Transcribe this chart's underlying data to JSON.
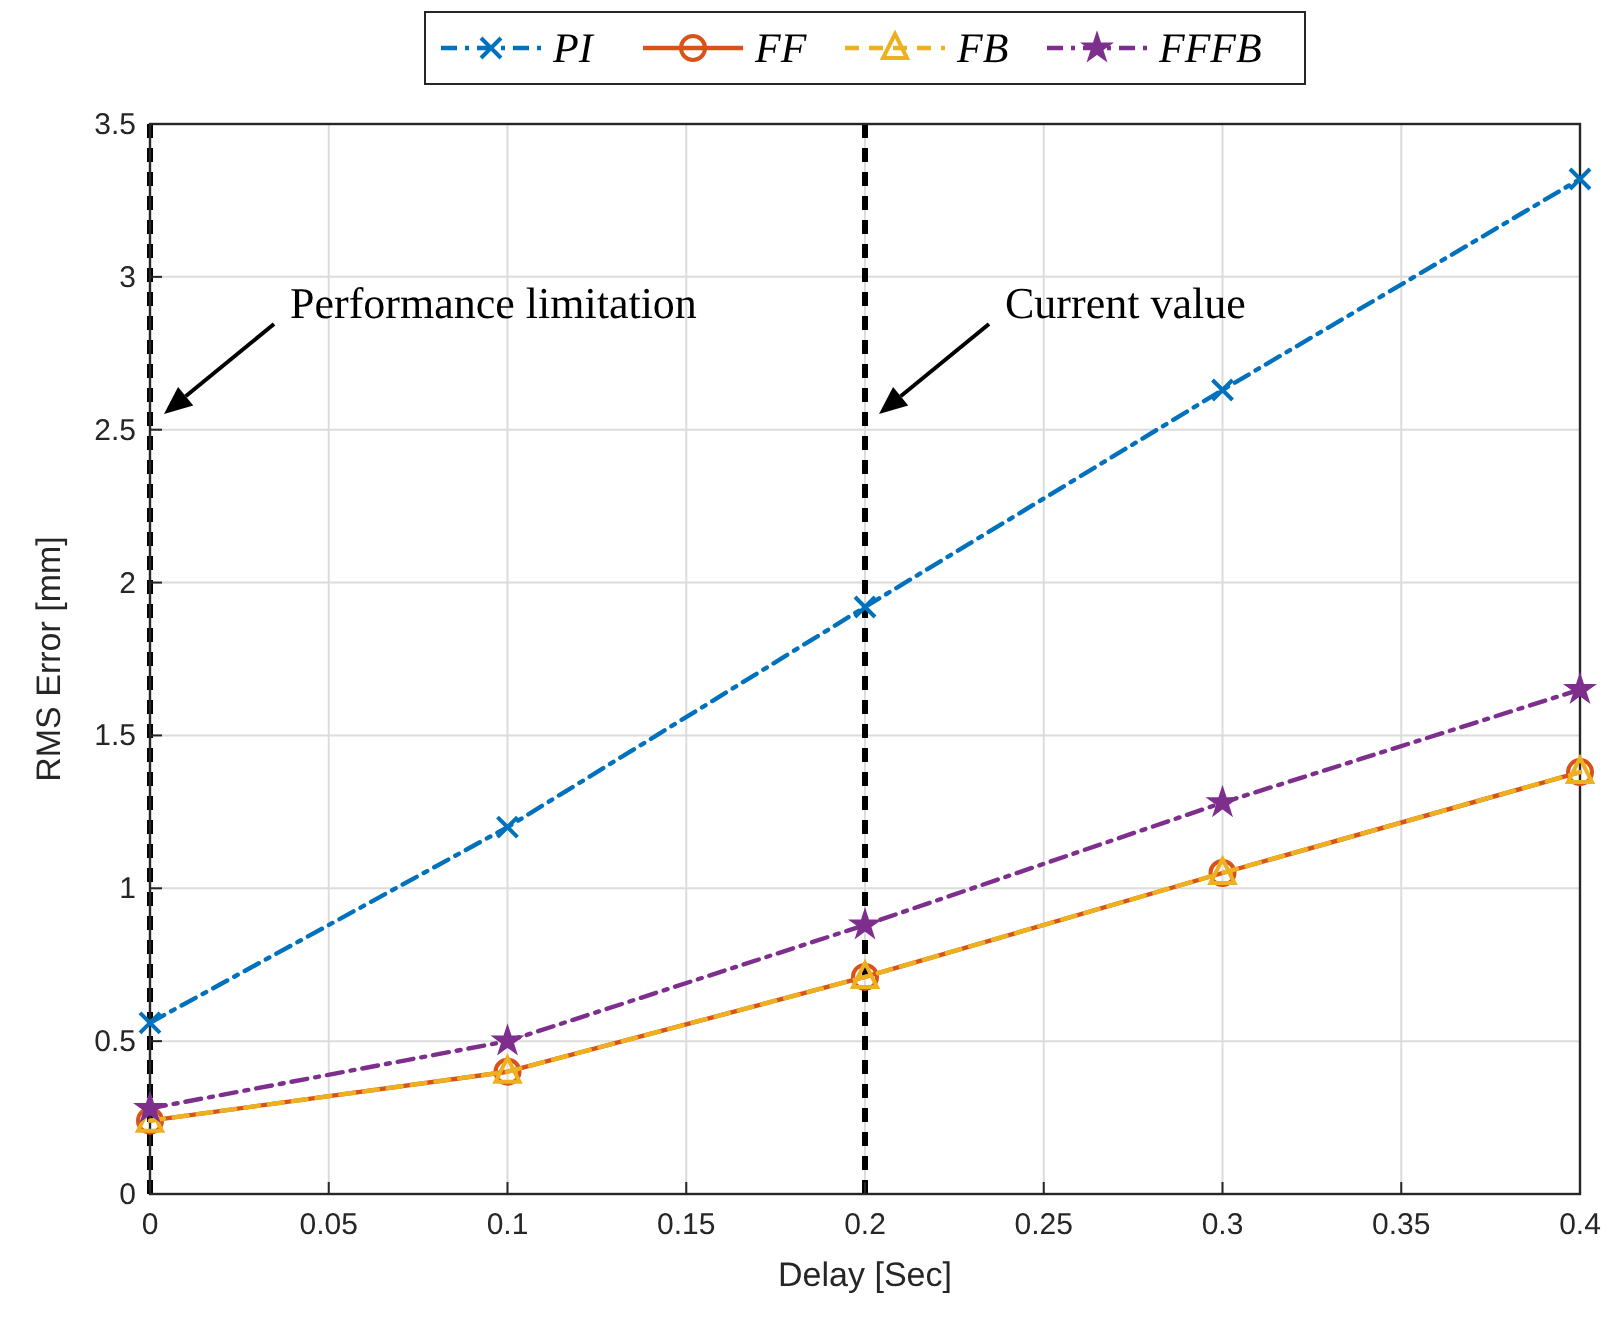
{
  "chart_data": {
    "type": "line",
    "xlabel": "Delay [Sec]",
    "ylabel": "RMS Error [mm]",
    "x": [
      0,
      0.1,
      0.2,
      0.3,
      0.4
    ],
    "series": [
      {
        "name": "PI",
        "color": "#0072bd",
        "values": [
          0.56,
          1.2,
          1.92,
          2.63,
          3.32
        ],
        "marker": "cross",
        "line_style": "dashdot"
      },
      {
        "name": "FF",
        "color": "#d95319",
        "values": [
          0.24,
          0.4,
          0.71,
          1.05,
          1.38
        ],
        "marker": "circle",
        "line_style": "solid"
      },
      {
        "name": "FB",
        "color": "#edb120",
        "values": [
          0.24,
          0.4,
          0.71,
          1.05,
          1.38
        ],
        "marker": "triangle",
        "line_style": "dashed"
      },
      {
        "name": "FFFB",
        "color": "#7e2f8e",
        "values": [
          0.28,
          0.5,
          0.88,
          1.28,
          1.65
        ],
        "marker": "star",
        "line_style": "dashdot"
      }
    ],
    "xlim": [
      0,
      0.4
    ],
    "xticks": [
      0,
      0.05,
      0.1,
      0.15,
      0.2,
      0.25,
      0.3,
      0.35,
      0.4
    ],
    "ylim": [
      0,
      3.5
    ],
    "yticks": [
      0,
      0.5,
      1,
      1.5,
      2,
      2.5,
      3,
      3.5
    ],
    "grid": true,
    "legend": "top",
    "ref_lines": [
      {
        "axis": "x",
        "value": 0,
        "color": "#000000",
        "line_style": "dashed"
      },
      {
        "axis": "x",
        "value": 0.2,
        "color": "#000000",
        "line_style": "dashed"
      }
    ],
    "annotations": [
      "Performance limitation",
      "Current value"
    ]
  }
}
